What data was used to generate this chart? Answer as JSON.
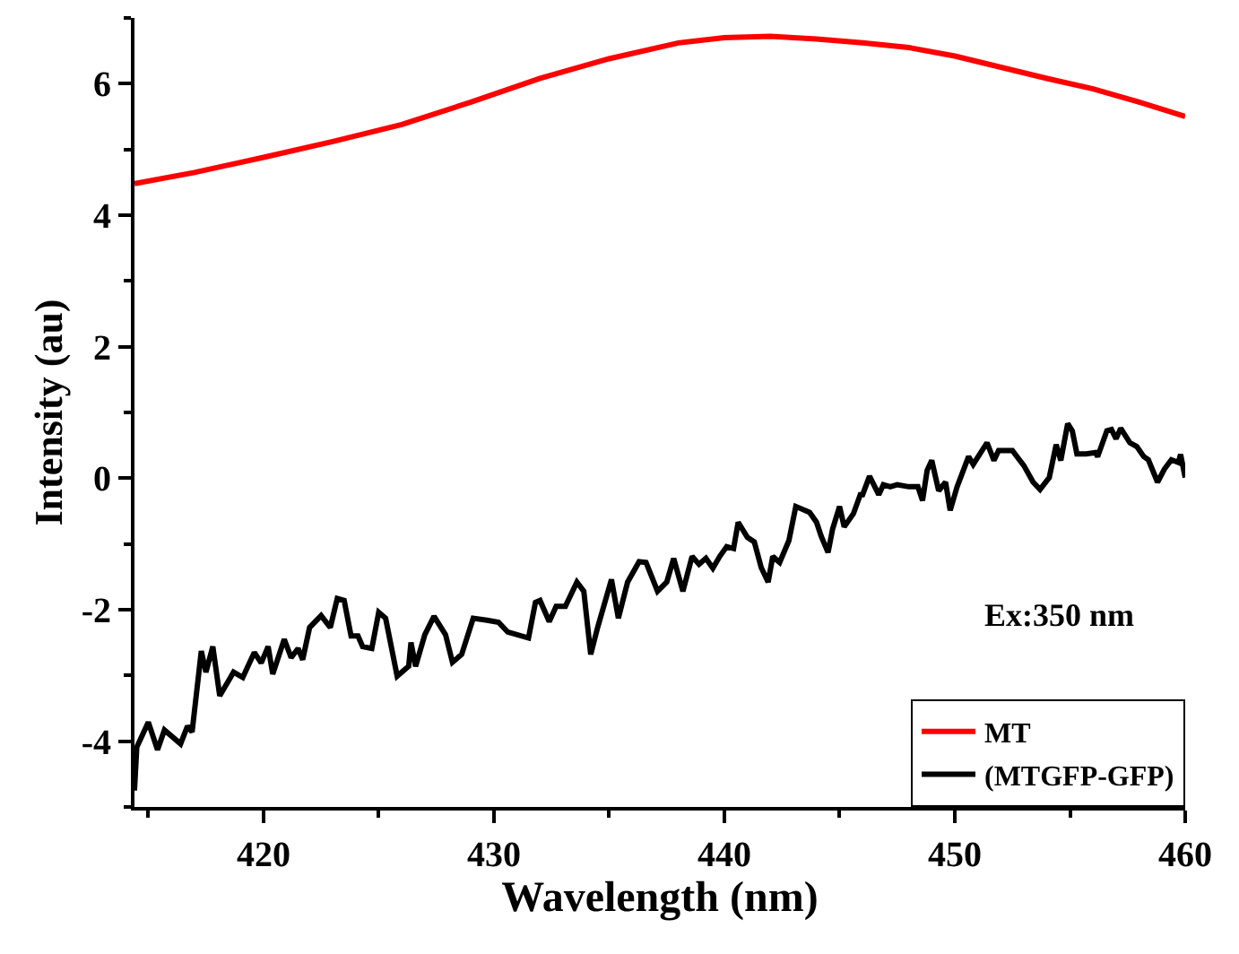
{
  "chart_data": {
    "type": "line",
    "xlabel": "Wavelength (nm)",
    "ylabel": "Intensity (au)",
    "xlim": [
      414.4,
      460
    ],
    "xticks": [
      420,
      430,
      440,
      450,
      460
    ],
    "ylim": [
      -5,
      7
    ],
    "yticks": [
      -4,
      -2,
      0,
      2,
      4,
      6
    ],
    "legend": "bottom right",
    "marker": "none",
    "line_style": "solid",
    "annotations": [
      "Ex:350 nm"
    ],
    "series": [
      {
        "name": "MT",
        "color": "#ff0000",
        "x": [
          414.4,
          417,
          420,
          423,
          426,
          429,
          432,
          435,
          438,
          440,
          442,
          444,
          446,
          448,
          450,
          452,
          454,
          456,
          458,
          460
        ],
        "values": [
          4.48,
          4.65,
          4.88,
          5.12,
          5.38,
          5.72,
          6.08,
          6.38,
          6.62,
          6.7,
          6.72,
          6.68,
          6.62,
          6.55,
          6.42,
          6.25,
          6.08,
          5.92,
          5.72,
          5.5
        ]
      },
      {
        "name": "(MTGFP-GFP)",
        "color": "#000000",
        "x": [
          414.4,
          414.5,
          415.0,
          415.4,
          415.7,
          416.4,
          416.7,
          416.9,
          417.3,
          417.5,
          417.8,
          418.1,
          418.7,
          419.1,
          419.6,
          419.9,
          420.2,
          420.4,
          420.9,
          421.2,
          421.5,
          421.7,
          422.0,
          422.5,
          422.9,
          423.2,
          423.5,
          423.8,
          424.1,
          424.3,
          424.7,
          425.0,
          425.3,
          425.8,
          426.3,
          426.4,
          426.6,
          427.0,
          427.4,
          427.9,
          428.2,
          428.6,
          429.1,
          429.7,
          430.2,
          430.6,
          431.5,
          431.8,
          432.0,
          432.4,
          432.7,
          433.1,
          433.6,
          433.9,
          434.2,
          434.5,
          435.1,
          435.4,
          435.8,
          436.3,
          436.6,
          437.1,
          437.5,
          437.8,
          438.2,
          438.6,
          438.9,
          439.2,
          439.5,
          439.8,
          440.1,
          440.4,
          440.6,
          441.0,
          441.3,
          441.6,
          441.9,
          442.1,
          442.4,
          442.8,
          443.1,
          443.7,
          444.0,
          444.2,
          444.5,
          444.7,
          445.0,
          445.2,
          445.6,
          445.9,
          446.0,
          446.3,
          446.7,
          446.9,
          447.2,
          447.5,
          448.0,
          448.4,
          448.6,
          448.8,
          449.0,
          449.3,
          449.6,
          449.8,
          450.1,
          450.6,
          450.8,
          451.4,
          451.7,
          451.9,
          452.5,
          453.0,
          453.4,
          453.7,
          454.1,
          454.4,
          454.6,
          454.9,
          455.1,
          455.3,
          455.7,
          456.1,
          456.2,
          456.6,
          456.8,
          457.0,
          457.2,
          457.6,
          457.9,
          458.2,
          458.4,
          458.8,
          459.1,
          459.4,
          459.7,
          459.8,
          460.0
        ],
        "values": [
          -4.75,
          -4.09,
          -3.71,
          -4.13,
          -3.83,
          -4.04,
          -3.77,
          -3.86,
          -2.63,
          -2.95,
          -2.56,
          -3.31,
          -2.95,
          -3.03,
          -2.65,
          -2.81,
          -2.56,
          -2.98,
          -2.45,
          -2.73,
          -2.59,
          -2.76,
          -2.27,
          -2.09,
          -2.27,
          -1.83,
          -1.86,
          -2.4,
          -2.4,
          -2.56,
          -2.59,
          -2.04,
          -2.13,
          -3.01,
          -2.86,
          -2.5,
          -2.86,
          -2.38,
          -2.1,
          -2.38,
          -2.8,
          -2.68,
          -2.13,
          -2.16,
          -2.19,
          -2.34,
          -2.43,
          -1.89,
          -1.86,
          -2.18,
          -1.95,
          -1.95,
          -1.58,
          -1.72,
          -2.68,
          -2.27,
          -1.54,
          -2.13,
          -1.58,
          -1.27,
          -1.28,
          -1.72,
          -1.58,
          -1.22,
          -1.72,
          -1.19,
          -1.31,
          -1.22,
          -1.37,
          -1.19,
          -1.04,
          -1.07,
          -0.67,
          -0.9,
          -0.97,
          -1.36,
          -1.58,
          -1.19,
          -1.28,
          -0.95,
          -0.43,
          -0.52,
          -0.67,
          -0.88,
          -1.13,
          -0.77,
          -0.43,
          -0.74,
          -0.54,
          -0.25,
          -0.25,
          0.03,
          -0.25,
          -0.1,
          -0.13,
          -0.1,
          -0.13,
          -0.13,
          -0.34,
          0.12,
          0.27,
          -0.19,
          -0.06,
          -0.49,
          -0.13,
          0.33,
          0.21,
          0.54,
          0.27,
          0.42,
          0.42,
          0.19,
          -0.06,
          -0.17,
          0.01,
          0.51,
          0.27,
          0.83,
          0.72,
          0.37,
          0.37,
          0.39,
          0.33,
          0.72,
          0.74,
          0.6,
          0.76,
          0.54,
          0.48,
          0.33,
          0.28,
          -0.06,
          0.14,
          0.28,
          0.24,
          0.36,
          0.01
        ]
      }
    ]
  }
}
